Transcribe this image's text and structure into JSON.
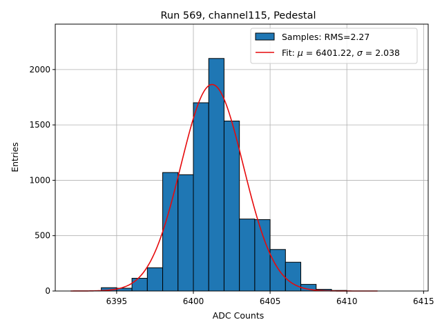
{
  "chart_data": {
    "type": "histogram",
    "title": "Run 569, channel115, Pedestal",
    "xlabel": "ADC Counts",
    "ylabel": "Entries",
    "xlim": [
      6391,
      6415.3
    ],
    "ylim": [
      0,
      2410
    ],
    "xticks": [
      6395,
      6400,
      6405,
      6410,
      6415
    ],
    "yticks": [
      0,
      500,
      1000,
      1500,
      2000
    ],
    "grid": true,
    "legend_position": "top-right",
    "bin_width": 1,
    "series": [
      {
        "name": "Samples: RMS=2.27",
        "type": "bar",
        "color": "#1f77b4",
        "bins": [
          {
            "left": 6394,
            "value": 30
          },
          {
            "left": 6395,
            "value": 25
          },
          {
            "left": 6396,
            "value": 115
          },
          {
            "left": 6397,
            "value": 210
          },
          {
            "left": 6398,
            "value": 1070
          },
          {
            "left": 6399,
            "value": 1050
          },
          {
            "left": 6400,
            "value": 1700
          },
          {
            "left": 6401,
            "value": 2100
          },
          {
            "left": 6402,
            "value": 1535
          },
          {
            "left": 6403,
            "value": 650
          },
          {
            "left": 6404,
            "value": 645
          },
          {
            "left": 6405,
            "value": 375
          },
          {
            "left": 6406,
            "value": 260
          },
          {
            "left": 6407,
            "value": 60
          },
          {
            "left": 6408,
            "value": 15
          },
          {
            "left": 6409,
            "value": 5
          }
        ]
      },
      {
        "name_prefix": "Fit: ",
        "name_mu": "μ",
        "name_mid": " = 6401.22, ",
        "name_sigma": "σ",
        "name_suffix": " = 2.038",
        "type": "line",
        "color": "#e6090b",
        "mu": 6401.22,
        "sigma": 2.038,
        "amplitude": 1865,
        "xrange": [
          6392,
          6412
        ]
      }
    ]
  }
}
